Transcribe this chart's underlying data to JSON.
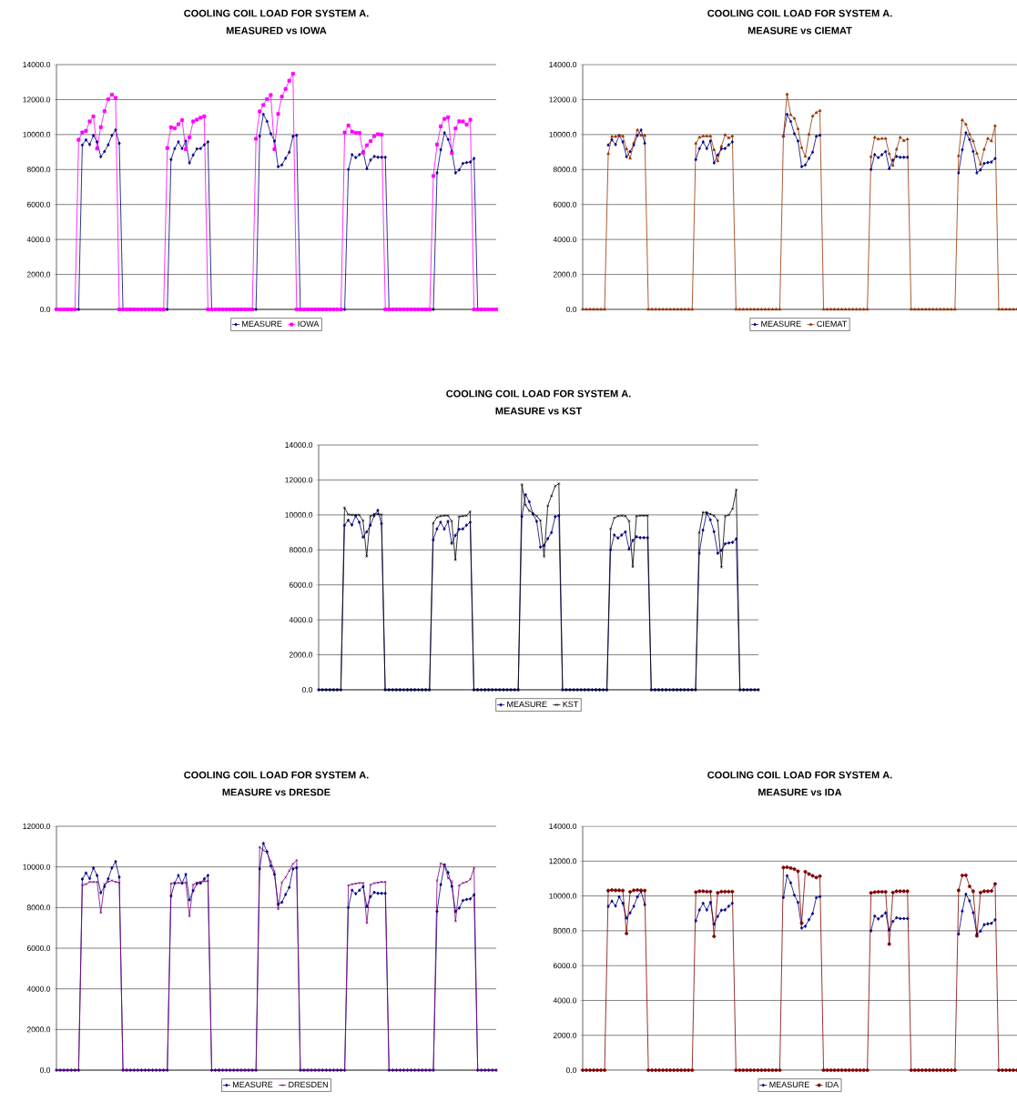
{
  "chart_data": [
    {
      "type": "line",
      "title": "COOLING COIL LOAD FOR SYSTEM A.",
      "subtitle": "MEASURED vs IOWA",
      "categories": [
        null,
        null,
        null,
        null,
        null,
        null,
        null,
        null,
        null,
        null,
        null,
        null,
        null,
        null,
        null,
        null,
        null,
        null,
        null,
        null,
        null,
        null,
        null,
        null,
        null,
        null,
        null,
        null,
        null,
        null,
        null,
        null,
        null,
        null,
        null,
        null,
        null,
        null,
        null,
        null,
        null,
        null,
        null,
        null,
        null,
        null,
        null,
        null,
        null,
        null,
        null,
        null,
        null,
        null,
        null,
        null,
        null,
        null,
        null,
        null,
        null,
        null,
        null,
        null,
        null,
        null,
        null,
        null,
        null,
        null,
        null,
        null,
        null,
        null,
        null,
        null,
        null,
        null,
        null,
        null,
        null,
        null,
        null,
        null,
        null,
        null,
        null,
        null,
        null,
        null,
        null,
        null,
        null,
        null,
        null,
        null,
        null,
        null,
        null,
        null,
        null,
        null,
        null,
        null,
        null,
        null,
        null,
        null,
        null,
        null,
        null,
        null,
        null,
        null,
        null,
        null,
        null,
        null,
        null,
        null
      ],
      "ylim": [
        0,
        14000
      ],
      "yticks": [
        {
          "value": 0,
          "label": "0.0"
        },
        {
          "value": 2000,
          "label": "2000.0"
        },
        {
          "value": 4000,
          "label": "4000.0"
        },
        {
          "value": 6000,
          "label": "6000.0"
        },
        {
          "value": 8000,
          "label": "8000.0"
        },
        {
          "value": 10000,
          "label": "10000.0"
        },
        {
          "value": 12000,
          "label": "12000.0"
        },
        {
          "value": 14000,
          "label": "14000.0"
        }
      ],
      "grid": "y",
      "legend": "bottom",
      "tick_labels": "y",
      "line_style": "solid",
      "series": [
        {
          "name": "MEASURE",
          "color": "#000080",
          "marker": "diamond",
          "values": [
            null,
            null,
            null,
            null,
            0,
            0,
            0,
            9400,
            9700,
            9430,
            9950,
            9580,
            8730,
            9030,
            9410,
            9950,
            10260,
            9500,
            0,
            0,
            0,
            0,
            0,
            0,
            0,
            0,
            0,
            0,
            0,
            0,
            0,
            8570,
            9200,
            9580,
            9200,
            9630,
            8380,
            8830,
            9180,
            9200,
            9410,
            9580,
            0,
            0,
            0,
            0,
            0,
            0,
            0,
            0,
            0,
            0,
            0,
            0,
            0,
            9910,
            11160,
            10750,
            10050,
            9630,
            8160,
            8260,
            8640,
            8990,
            9900,
            9960,
            0,
            0,
            0,
            0,
            0,
            0,
            0,
            0,
            0,
            0,
            0,
            0,
            0,
            8000,
            8850,
            8680,
            8850,
            9030,
            8050,
            8540,
            8750,
            8700,
            8700,
            8700,
            0,
            0,
            0,
            0,
            0,
            0,
            0,
            0,
            0,
            0,
            0,
            0,
            0,
            7810,
            9130,
            10100,
            9720,
            9040,
            7810,
            7980,
            8350,
            8400,
            8430,
            8630,
            0,
            0,
            null,
            null,
            null,
            null
          ]
        },
        {
          "name": "IOWA",
          "color": "#ff00ff",
          "marker": "square",
          "values": [
            0,
            0,
            0,
            0,
            0,
            0,
            9700,
            10120,
            10210,
            10750,
            11040,
            9200,
            10420,
            11340,
            12020,
            12280,
            12100,
            0,
            0,
            0,
            0,
            0,
            0,
            0,
            0,
            0,
            0,
            0,
            0,
            0,
            9230,
            10420,
            10360,
            10590,
            10830,
            9160,
            9840,
            10750,
            10850,
            10960,
            11040,
            0,
            0,
            0,
            0,
            0,
            0,
            0,
            0,
            0,
            0,
            0,
            0,
            0,
            9760,
            11320,
            11690,
            12030,
            12260,
            9160,
            11180,
            12170,
            12610,
            13080,
            13480,
            0,
            0,
            0,
            0,
            0,
            0,
            0,
            0,
            0,
            0,
            0,
            0,
            0,
            10120,
            10520,
            10170,
            10100,
            10090,
            8960,
            9390,
            9620,
            9910,
            10020,
            10000,
            0,
            0,
            0,
            0,
            0,
            0,
            0,
            0,
            0,
            0,
            0,
            0,
            0,
            7630,
            9430,
            10470,
            10900,
            10990,
            8940,
            10350,
            10760,
            10750,
            10570,
            10850,
            0,
            0,
            0,
            0,
            0,
            0,
            0
          ]
        }
      ]
    },
    {
      "type": "line",
      "title": "COOLING COIL LOAD FOR SYSTEM A.",
      "subtitle": "MEASURE vs CIEMAT",
      "categories": [
        null,
        null,
        null,
        null,
        null,
        null,
        null,
        null,
        null,
        null,
        null,
        null,
        null,
        null,
        null,
        null,
        null,
        null,
        null,
        null,
        null,
        null,
        null,
        null,
        null,
        null,
        null,
        null,
        null,
        null,
        null,
        null,
        null,
        null,
        null,
        null,
        null,
        null,
        null,
        null,
        null,
        null,
        null,
        null,
        null,
        null,
        null,
        null,
        null,
        null,
        null,
        null,
        null,
        null,
        null,
        null,
        null,
        null,
        null,
        null,
        null,
        null,
        null,
        null,
        null,
        null,
        null,
        null,
        null,
        null,
        null,
        null,
        null,
        null,
        null,
        null,
        null,
        null,
        null,
        null,
        null,
        null,
        null,
        null,
        null,
        null,
        null,
        null,
        null,
        null,
        null,
        null,
        null,
        null,
        null,
        null,
        null,
        null,
        null,
        null,
        null,
        null,
        null,
        null,
        null,
        null,
        null,
        null,
        null,
        null,
        null,
        null,
        null,
        null,
        null,
        null,
        null,
        null,
        null,
        null
      ],
      "ylim": [
        0,
        14000
      ],
      "yticks": [
        {
          "value": 0,
          "label": "0.0"
        },
        {
          "value": 2000,
          "label": "2000.0"
        },
        {
          "value": 4000,
          "label": "4000.0"
        },
        {
          "value": 6000,
          "label": "6000.0"
        },
        {
          "value": 8000,
          "label": "8000.0"
        },
        {
          "value": 10000,
          "label": "10000.0"
        },
        {
          "value": 12000,
          "label": "12000.0"
        },
        {
          "value": 14000,
          "label": "14000.0"
        }
      ],
      "grid": "y",
      "legend": "bottom",
      "tick_labels": "y",
      "line_style": "solid",
      "series": [
        {
          "name": "MEASURE",
          "color": "#000080",
          "marker": "diamond",
          "values": [
            null,
            null,
            null,
            null,
            null,
            null,
            null,
            9400,
            9700,
            9430,
            9950,
            9580,
            8730,
            9030,
            9410,
            9950,
            10260,
            9500,
            null,
            null,
            null,
            null,
            null,
            null,
            null,
            null,
            null,
            null,
            null,
            null,
            null,
            8570,
            9200,
            9580,
            9200,
            9630,
            8380,
            8830,
            9180,
            9200,
            9410,
            9580,
            null,
            null,
            null,
            null,
            null,
            null,
            null,
            null,
            null,
            null,
            null,
            null,
            null,
            9910,
            11160,
            10750,
            10050,
            9630,
            8160,
            8260,
            8640,
            8990,
            9900,
            9960,
            null,
            null,
            null,
            null,
            null,
            null,
            null,
            null,
            null,
            null,
            null,
            null,
            null,
            8000,
            8850,
            8680,
            8850,
            9030,
            8050,
            8540,
            8750,
            8700,
            8700,
            8700,
            null,
            null,
            null,
            null,
            null,
            null,
            null,
            null,
            null,
            null,
            null,
            null,
            null,
            7810,
            9130,
            10100,
            9720,
            9040,
            7810,
            7980,
            8350,
            8400,
            8430,
            8630,
            null,
            null,
            null,
            null,
            null,
            null
          ]
        },
        {
          "name": "CIEMAT",
          "color": "#993300",
          "marker": "triangle",
          "values": [
            0,
            0,
            0,
            0,
            0,
            0,
            0,
            8900,
            9880,
            9880,
            9950,
            9910,
            9180,
            8640,
            9510,
            10260,
            9950,
            9950,
            0,
            0,
            0,
            0,
            0,
            0,
            0,
            0,
            0,
            0,
            0,
            0,
            0,
            9500,
            9840,
            9910,
            9910,
            9910,
            9130,
            8490,
            9320,
            9980,
            9810,
            9910,
            0,
            0,
            0,
            0,
            0,
            0,
            0,
            0,
            0,
            0,
            0,
            0,
            0,
            9910,
            12310,
            11130,
            10920,
            10330,
            9250,
            8750,
            10020,
            11060,
            11250,
            11370,
            0,
            0,
            0,
            0,
            0,
            0,
            0,
            0,
            0,
            0,
            0,
            0,
            0,
            8730,
            9840,
            9740,
            9770,
            9770,
            8900,
            8230,
            9160,
            9840,
            9650,
            9740,
            0,
            0,
            0,
            0,
            0,
            0,
            0,
            0,
            0,
            0,
            0,
            0,
            0,
            8780,
            10830,
            10590,
            10020,
            9630,
            8920,
            8310,
            9150,
            9770,
            9630,
            10500,
            0,
            0,
            0,
            0,
            0,
            0
          ]
        }
      ]
    },
    {
      "type": "line",
      "title": "COOLING COIL LOAD FOR SYSTEM A.",
      "subtitle": "MEASURE vs KST",
      "categories": [
        null,
        null,
        null,
        null,
        null,
        null,
        null,
        null,
        null,
        null,
        null,
        null,
        null,
        null,
        null,
        null,
        null,
        null,
        null,
        null,
        null,
        null,
        null,
        null,
        null,
        null,
        null,
        null,
        null,
        null,
        null,
        null,
        null,
        null,
        null,
        null,
        null,
        null,
        null,
        null,
        null,
        null,
        null,
        null,
        null,
        null,
        null,
        null,
        null,
        null,
        null,
        null,
        null,
        null,
        null,
        null,
        null,
        null,
        null,
        null,
        null,
        null,
        null,
        null,
        null,
        null,
        null,
        null,
        null,
        null,
        null,
        null,
        null,
        null,
        null,
        null,
        null,
        null,
        null,
        null,
        null,
        null,
        null,
        null,
        null,
        null,
        null,
        null,
        null,
        null,
        null,
        null,
        null,
        null,
        null,
        null,
        null,
        null,
        null,
        null,
        null,
        null,
        null,
        null,
        null,
        null,
        null,
        null,
        null,
        null,
        null,
        null,
        null,
        null,
        null,
        null,
        null,
        null,
        null,
        null
      ],
      "ylim": [
        0,
        14000
      ],
      "yticks": [
        {
          "value": 0,
          "label": "0.0"
        },
        {
          "value": 2000,
          "label": "2000.0"
        },
        {
          "value": 4000,
          "label": "4000.0"
        },
        {
          "value": 6000,
          "label": "6000.0"
        },
        {
          "value": 8000,
          "label": "8000.0"
        },
        {
          "value": 10000,
          "label": "10000.0"
        },
        {
          "value": 12000,
          "label": "12000.0"
        },
        {
          "value": 14000,
          "label": "14000.0"
        }
      ],
      "grid": "y",
      "legend": "bottom",
      "tick_labels": "y",
      "line_style": "solid",
      "series": [
        {
          "name": "MEASURE",
          "color": "#000080",
          "marker": "diamond",
          "values": [
            0,
            0,
            0,
            0,
            0,
            0,
            0,
            9400,
            9700,
            9430,
            9950,
            9580,
            8730,
            9030,
            9410,
            9950,
            10260,
            9500,
            0,
            0,
            0,
            0,
            0,
            0,
            0,
            0,
            0,
            0,
            0,
            0,
            0,
            8570,
            9200,
            9580,
            9200,
            9630,
            8380,
            8830,
            9180,
            9200,
            9410,
            9580,
            0,
            0,
            0,
            0,
            0,
            0,
            0,
            0,
            0,
            0,
            0,
            0,
            0,
            9910,
            11160,
            10750,
            10050,
            9630,
            8160,
            8260,
            8640,
            8990,
            9900,
            9960,
            0,
            0,
            0,
            0,
            0,
            0,
            0,
            0,
            0,
            0,
            0,
            0,
            0,
            8000,
            8850,
            8680,
            8850,
            9030,
            8050,
            8540,
            8750,
            8700,
            8700,
            8700,
            0,
            0,
            0,
            0,
            0,
            0,
            0,
            0,
            0,
            0,
            0,
            0,
            0,
            7810,
            9130,
            10100,
            9720,
            9040,
            7810,
            7980,
            8350,
            8400,
            8430,
            8630,
            0,
            0,
            0,
            0,
            0,
            0
          ]
        },
        {
          "name": "KST",
          "color": "#000000",
          "marker": "cross",
          "values": [
            0,
            0,
            0,
            0,
            0,
            0,
            0,
            10420,
            10020,
            10000,
            10000,
            10000,
            9670,
            7630,
            9930,
            10050,
            10050,
            10020,
            0,
            0,
            0,
            0,
            0,
            0,
            0,
            0,
            0,
            0,
            0,
            0,
            0,
            9530,
            9860,
            9930,
            9960,
            9960,
            9650,
            7430,
            9910,
            9930,
            9960,
            10190,
            0,
            0,
            0,
            0,
            0,
            0,
            0,
            0,
            0,
            0,
            0,
            0,
            0,
            11740,
            10560,
            10240,
            10100,
            9930,
            9690,
            7620,
            10520,
            11090,
            11650,
            11790,
            0,
            0,
            0,
            0,
            0,
            0,
            0,
            0,
            0,
            0,
            0,
            0,
            0,
            9200,
            9830,
            9930,
            9960,
            9930,
            9650,
            7040,
            9930,
            9960,
            9960,
            9960,
            0,
            0,
            0,
            0,
            0,
            0,
            0,
            0,
            0,
            0,
            0,
            0,
            0,
            8990,
            10140,
            10140,
            10050,
            9960,
            9690,
            7010,
            9930,
            10000,
            10350,
            11440,
            0,
            0,
            0,
            0,
            0,
            0
          ]
        }
      ]
    },
    {
      "type": "line",
      "title": "COOLING COIL LOAD FOR SYSTEM A.",
      "subtitle": "MEASURE vs DRESDE",
      "categories": [
        null,
        null,
        null,
        null,
        null,
        null,
        null,
        null,
        null,
        null,
        null,
        null,
        null,
        null,
        null,
        null,
        null,
        null,
        null,
        null,
        null,
        null,
        null,
        null,
        null,
        null,
        null,
        null,
        null,
        null,
        null,
        null,
        null,
        null,
        null,
        null,
        null,
        null,
        null,
        null,
        null,
        null,
        null,
        null,
        null,
        null,
        null,
        null,
        null,
        null,
        null,
        null,
        null,
        null,
        null,
        null,
        null,
        null,
        null,
        null,
        null,
        null,
        null,
        null,
        null,
        null,
        null,
        null,
        null,
        null,
        null,
        null,
        null,
        null,
        null,
        null,
        null,
        null,
        null,
        null,
        null,
        null,
        null,
        null,
        null,
        null,
        null,
        null,
        null,
        null,
        null,
        null,
        null,
        null,
        null,
        null,
        null,
        null,
        null,
        null,
        null,
        null,
        null,
        null,
        null,
        null,
        null,
        null,
        null,
        null,
        null,
        null,
        null,
        null,
        null,
        null,
        null,
        null,
        null,
        null
      ],
      "ylim": [
        0,
        12000
      ],
      "yticks": [
        {
          "value": 0,
          "label": "0.0"
        },
        {
          "value": 2000,
          "label": "2000.0"
        },
        {
          "value": 4000,
          "label": "4000.0"
        },
        {
          "value": 6000,
          "label": "6000.0"
        },
        {
          "value": 8000,
          "label": "8000.0"
        },
        {
          "value": 10000,
          "label": "10000.0"
        },
        {
          "value": 12000,
          "label": "12000.0"
        }
      ],
      "grid": "y",
      "legend": "bottom",
      "tick_labels": "y",
      "line_style": "solid",
      "series": [
        {
          "name": "MEASURE",
          "color": "#000080",
          "marker": "diamond",
          "values": [
            0,
            0,
            0,
            0,
            0,
            0,
            0,
            9400,
            9700,
            9430,
            9950,
            9580,
            8730,
            9030,
            9410,
            9950,
            10260,
            9500,
            0,
            0,
            0,
            0,
            0,
            0,
            0,
            0,
            0,
            0,
            0,
            0,
            0,
            8570,
            9200,
            9580,
            9200,
            9630,
            8380,
            8830,
            9180,
            9200,
            9410,
            9580,
            0,
            0,
            0,
            0,
            0,
            0,
            0,
            0,
            0,
            0,
            0,
            0,
            0,
            9910,
            11160,
            10750,
            10050,
            9630,
            8160,
            8260,
            8640,
            8990,
            9900,
            9960,
            0,
            0,
            0,
            0,
            0,
            0,
            0,
            0,
            0,
            0,
            0,
            0,
            0,
            8000,
            8850,
            8680,
            8850,
            9030,
            8050,
            8540,
            8750,
            8700,
            8700,
            8700,
            0,
            0,
            0,
            0,
            0,
            0,
            0,
            0,
            0,
            0,
            0,
            0,
            0,
            7810,
            9130,
            10100,
            9720,
            9040,
            7810,
            7980,
            8350,
            8400,
            8430,
            8630,
            0,
            0,
            0,
            0,
            0,
            0
          ]
        },
        {
          "name": "DRESDEN",
          "color": "#800080",
          "marker": "cross",
          "values": [
            0,
            0,
            0,
            0,
            0,
            0,
            0,
            9110,
            9150,
            9260,
            9260,
            9260,
            7750,
            9150,
            9260,
            9330,
            9260,
            9230,
            0,
            0,
            0,
            0,
            0,
            0,
            0,
            0,
            0,
            0,
            0,
            0,
            0,
            9180,
            9210,
            9210,
            9210,
            9230,
            7580,
            9120,
            9230,
            9260,
            9290,
            9300,
            0,
            0,
            0,
            0,
            0,
            0,
            0,
            0,
            0,
            0,
            0,
            0,
            0,
            10970,
            10820,
            10700,
            10270,
            9780,
            7930,
            9240,
            9480,
            9820,
            10150,
            10330,
            0,
            0,
            0,
            0,
            0,
            0,
            0,
            0,
            0,
            0,
            0,
            0,
            0,
            9090,
            9150,
            9180,
            9210,
            9210,
            7240,
            9120,
            9200,
            9230,
            9260,
            9260,
            0,
            0,
            0,
            0,
            0,
            0,
            0,
            0,
            0,
            0,
            0,
            0,
            0,
            9330,
            10180,
            10090,
            9440,
            9290,
            7330,
            9090,
            9210,
            9260,
            9390,
            9940,
            0,
            0,
            0,
            0,
            0,
            0
          ]
        }
      ]
    },
    {
      "type": "line",
      "title": "COOLING COIL LOAD FOR SYSTEM A.",
      "subtitle": "MEASURE vs IDA",
      "categories": [
        null,
        null,
        null,
        null,
        null,
        null,
        null,
        null,
        null,
        null,
        null,
        null,
        null,
        null,
        null,
        null,
        null,
        null,
        null,
        null,
        null,
        null,
        null,
        null,
        null,
        null,
        null,
        null,
        null,
        null,
        null,
        null,
        null,
        null,
        null,
        null,
        null,
        null,
        null,
        null,
        null,
        null,
        null,
        null,
        null,
        null,
        null,
        null,
        null,
        null,
        null,
        null,
        null,
        null,
        null,
        null,
        null,
        null,
        null,
        null,
        null,
        null,
        null,
        null,
        null,
        null,
        null,
        null,
        null,
        null,
        null,
        null,
        null,
        null,
        null,
        null,
        null,
        null,
        null,
        null,
        null,
        null,
        null,
        null,
        null,
        null,
        null,
        null,
        null,
        null,
        null,
        null,
        null,
        null,
        null,
        null,
        null,
        null,
        null,
        null,
        null,
        null,
        null,
        null,
        null,
        null,
        null,
        null,
        null,
        null,
        null,
        null,
        null,
        null,
        null,
        null,
        null,
        null,
        null,
        null
      ],
      "ylim": [
        0,
        14000
      ],
      "yticks": [
        {
          "value": 0,
          "label": "0.0"
        },
        {
          "value": 2000,
          "label": "2000.0"
        },
        {
          "value": 4000,
          "label": "4000.0"
        },
        {
          "value": 6000,
          "label": "6000.0"
        },
        {
          "value": 8000,
          "label": "8000.0"
        },
        {
          "value": 10000,
          "label": "10000.0"
        },
        {
          "value": 12000,
          "label": "12000.0"
        },
        {
          "value": 14000,
          "label": "14000.0"
        }
      ],
      "grid": "y",
      "legend": "bottom",
      "tick_labels": "y",
      "line_style": "solid",
      "series": [
        {
          "name": "MEASURE",
          "color": "#000080",
          "marker": "diamond",
          "values": [
            null,
            null,
            null,
            null,
            null,
            null,
            null,
            9400,
            9700,
            9430,
            9950,
            9580,
            8730,
            9030,
            9410,
            9950,
            10260,
            9500,
            null,
            null,
            null,
            null,
            null,
            null,
            null,
            null,
            null,
            null,
            null,
            null,
            null,
            8570,
            9200,
            9580,
            9200,
            9630,
            8380,
            8830,
            9180,
            9200,
            9410,
            9580,
            null,
            null,
            null,
            null,
            null,
            null,
            null,
            null,
            null,
            null,
            null,
            null,
            null,
            9910,
            11160,
            10750,
            10050,
            9630,
            8160,
            8260,
            8640,
            8990,
            9900,
            9960,
            null,
            null,
            null,
            null,
            null,
            null,
            null,
            null,
            null,
            null,
            null,
            null,
            null,
            8000,
            8850,
            8680,
            8850,
            9030,
            8050,
            8540,
            8750,
            8700,
            8700,
            8700,
            null,
            null,
            null,
            null,
            null,
            null,
            null,
            null,
            null,
            null,
            null,
            null,
            null,
            7810,
            9130,
            10100,
            9720,
            9040,
            7810,
            7980,
            8350,
            8400,
            8430,
            8630,
            null,
            null,
            null,
            null,
            null,
            null
          ]
        },
        {
          "name": "IDA",
          "color": "#800000",
          "marker": "circle",
          "values": [
            0,
            0,
            0,
            0,
            0,
            0,
            0,
            10310,
            10340,
            10320,
            10320,
            10310,
            7850,
            10240,
            10320,
            10340,
            10320,
            10310,
            0,
            0,
            0,
            0,
            0,
            0,
            0,
            0,
            0,
            0,
            0,
            0,
            0,
            10220,
            10270,
            10270,
            10250,
            10250,
            7680,
            10180,
            10250,
            10250,
            10250,
            10250,
            0,
            0,
            0,
            0,
            0,
            0,
            0,
            0,
            0,
            0,
            0,
            0,
            0,
            11630,
            11650,
            11600,
            11540,
            11420,
            8440,
            11390,
            11260,
            11160,
            11060,
            11140,
            0,
            0,
            0,
            0,
            0,
            0,
            0,
            0,
            0,
            0,
            0,
            0,
            0,
            10180,
            10220,
            10240,
            10240,
            10240,
            7240,
            10200,
            10270,
            10270,
            10270,
            10270,
            0,
            0,
            0,
            0,
            0,
            0,
            0,
            0,
            0,
            0,
            0,
            0,
            0,
            10320,
            11180,
            11190,
            10550,
            10270,
            7710,
            10200,
            10270,
            10270,
            10290,
            10690,
            0,
            0,
            0,
            0,
            0,
            0
          ]
        }
      ]
    }
  ]
}
